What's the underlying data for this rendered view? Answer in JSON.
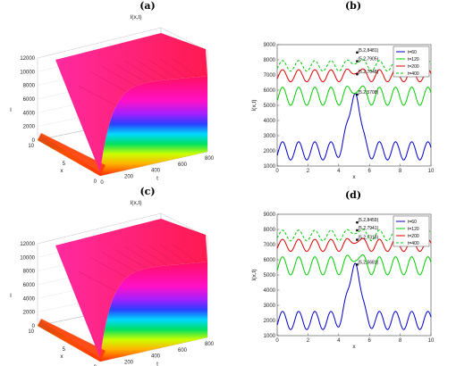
{
  "panels": [
    {
      "id": "a",
      "label": "(a)",
      "title": "I(x,t)",
      "xlabel": "x",
      "ylabel": "t",
      "zlabel": "I",
      "x_ticks": [
        "0",
        "5",
        "10"
      ],
      "t_ticks": [
        "0",
        "200",
        "400",
        "600",
        "800"
      ],
      "z_ticks": [
        "0",
        "2000",
        "4000",
        "6000",
        "8000",
        "10000",
        "12000"
      ]
    },
    {
      "id": "c",
      "label": "(c)",
      "title": "I(x,t)",
      "xlabel": "x",
      "ylabel": "t",
      "zlabel": "I",
      "x_ticks": [
        "0",
        "5",
        "10"
      ],
      "t_ticks": [
        "0",
        "200",
        "400",
        "600",
        "800"
      ],
      "z_ticks": [
        "0",
        "2000",
        "4000",
        "6000",
        "8000",
        "10000",
        "12000"
      ]
    }
  ],
  "chart_data": [
    {
      "type": "line",
      "label": "(b)",
      "xlabel": "x",
      "ylabel": "I(x,t)",
      "xlim": [
        0,
        10
      ],
      "ylim": [
        1000,
        9000
      ],
      "x_ticks": [
        "0",
        "2",
        "4",
        "6",
        "8",
        "10"
      ],
      "y_ticks": [
        "1000",
        "2000",
        "3000",
        "4000",
        "5000",
        "6000",
        "7000",
        "8000",
        "9000"
      ],
      "series": [
        {
          "name": "t=60",
          "color": "#0000cc",
          "dash": "solid",
          "base": 2000,
          "amp": 600,
          "peak": 5708,
          "kind": "spike"
        },
        {
          "name": "t=120",
          "color": "#00cc00",
          "dash": "solid",
          "base": 5600,
          "amp": 600,
          "peak": 7048,
          "kind": "wave"
        },
        {
          "name": "t=200",
          "color": "#dd0000",
          "dash": "solid",
          "base": 6950,
          "amp": 400,
          "peak": 7905,
          "kind": "wave"
        },
        {
          "name": "t=400",
          "color": "#00cc00",
          "dash": "dashed",
          "base": 7600,
          "amp": 350,
          "peak": 8481,
          "kind": "wave"
        }
      ],
      "annotations": [
        {
          "text": "(5.2,8481)",
          "x": 5.2,
          "y": 8481
        },
        {
          "text": "(5.2,7905)",
          "x": 5.2,
          "y": 7905
        },
        {
          "text": "(5.2,7048)",
          "x": 5.2,
          "y": 7048
        },
        {
          "text": "(5.2,5708)",
          "x": 5.2,
          "y": 5708
        }
      ],
      "legend": "top-right"
    },
    {
      "type": "line",
      "label": "(d)",
      "xlabel": "x",
      "ylabel": "I(x,t)",
      "xlim": [
        0,
        10
      ],
      "ylim": [
        1000,
        9000
      ],
      "x_ticks": [
        "0",
        "2",
        "4",
        "6",
        "8",
        "10"
      ],
      "y_ticks": [
        "1000",
        "2000",
        "3000",
        "4000",
        "5000",
        "6000",
        "7000",
        "8000",
        "9000"
      ],
      "series": [
        {
          "name": "t=60",
          "color": "#0000cc",
          "dash": "solid",
          "base": 2000,
          "amp": 600,
          "peak": 5681,
          "kind": "spike"
        },
        {
          "name": "t=120",
          "color": "#00cc00",
          "dash": "solid",
          "base": 5600,
          "amp": 600,
          "peak": 7318,
          "kind": "wave"
        },
        {
          "name": "t=200",
          "color": "#dd0000",
          "dash": "solid",
          "base": 6950,
          "amp": 400,
          "peak": 7941,
          "kind": "wave"
        },
        {
          "name": "t=400",
          "color": "#00cc00",
          "dash": "dashed",
          "base": 7600,
          "amp": 350,
          "peak": 8459,
          "kind": "wave"
        }
      ],
      "annotations": [
        {
          "text": "(5.2,8459)",
          "x": 5.2,
          "y": 8459
        },
        {
          "text": "(5.2,7941)",
          "x": 5.2,
          "y": 7941
        },
        {
          "text": "(5.2,7318)",
          "x": 5.2,
          "y": 7318
        },
        {
          "text": "(5.2,5681)",
          "x": 5.2,
          "y": 5681
        }
      ],
      "legend": "top-right"
    }
  ]
}
